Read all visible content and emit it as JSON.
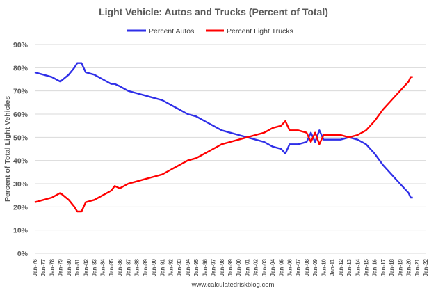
{
  "chart_data": {
    "type": "line",
    "title": "Light Vehicle: Autos and Trucks (Percent of Total)",
    "xlabel": "",
    "ylabel": "Percent of Total Light Vehicles",
    "source": "www.calculatedriskblog.com",
    "ylim": [
      0,
      90
    ],
    "yticks": [
      "0%",
      "10%",
      "20%",
      "30%",
      "40%",
      "50%",
      "60%",
      "70%",
      "80%",
      "90%"
    ],
    "xticks": [
      "Jan-76",
      "Jan-77",
      "Jan-78",
      "Jan-79",
      "Jan-80",
      "Jan-81",
      "Jan-82",
      "Jan-83",
      "Jan-84",
      "Jan-85",
      "Jan-86",
      "Jan-87",
      "Jan-88",
      "Jan-89",
      "Jan-90",
      "Jan-91",
      "Jan-92",
      "Jan-93",
      "Jan-94",
      "Jan-95",
      "Jan-96",
      "Jan-97",
      "Jan-98",
      "Jan-99",
      "Jan-00",
      "Jan-01",
      "Jan-02",
      "Jan-03",
      "Jan-04",
      "Jan-05",
      "Jan-06",
      "Jan-07",
      "Jan-08",
      "Jan-09",
      "Jan-10",
      "Jan-11",
      "Jan-12",
      "Jan-13",
      "Jan-14",
      "Jan-15",
      "Jan-16",
      "Jan-17",
      "Jan-18",
      "Jan-19",
      "Jan-20",
      "Jan-21",
      "Jan-22"
    ],
    "grid": true,
    "legend": "top-center",
    "series": [
      {
        "name": "Percent Autos",
        "color": "#2F2FE8",
        "x": [
          "1976-01",
          "1977-01",
          "1978-01",
          "1979-01",
          "1980-01",
          "1980-09",
          "1981-01",
          "1981-07",
          "1982-01",
          "1983-01",
          "1984-01",
          "1985-01",
          "1985-06",
          "1986-01",
          "1987-01",
          "1988-01",
          "1989-01",
          "1990-01",
          "1991-01",
          "1992-01",
          "1993-01",
          "1994-01",
          "1995-01",
          "1996-01",
          "1997-01",
          "1998-01",
          "1999-01",
          "2000-01",
          "2001-01",
          "2002-01",
          "2003-01",
          "2004-01",
          "2005-01",
          "2005-07",
          "2006-01",
          "2007-01",
          "2008-01",
          "2008-07",
          "2009-01",
          "2009-07",
          "2010-01",
          "2011-01",
          "2012-01",
          "2013-01",
          "2014-01",
          "2015-01",
          "2016-01",
          "2017-01",
          "2018-01",
          "2019-01",
          "2020-01",
          "2020-04",
          "2020-07"
        ],
        "values": [
          78,
          77,
          76,
          74,
          77,
          80,
          82,
          82,
          78,
          77,
          75,
          73,
          73,
          72,
          70,
          69,
          68,
          67,
          66,
          64,
          62,
          60,
          59,
          57,
          55,
          53,
          52,
          51,
          50,
          49,
          48,
          46,
          45,
          43,
          47,
          47,
          48,
          52,
          48,
          53,
          49,
          49,
          49,
          50,
          49,
          47,
          43,
          38,
          34,
          30,
          26,
          24,
          24
        ]
      },
      {
        "name": "Percent Light Trucks",
        "color": "#FF0000",
        "x": [
          "1976-01",
          "1977-01",
          "1978-01",
          "1979-01",
          "1980-01",
          "1980-09",
          "1981-01",
          "1981-07",
          "1982-01",
          "1983-01",
          "1984-01",
          "1985-01",
          "1985-06",
          "1986-01",
          "1987-01",
          "1988-01",
          "1989-01",
          "1990-01",
          "1991-01",
          "1992-01",
          "1993-01",
          "1994-01",
          "1995-01",
          "1996-01",
          "1997-01",
          "1998-01",
          "1999-01",
          "2000-01",
          "2001-01",
          "2002-01",
          "2003-01",
          "2004-01",
          "2005-01",
          "2005-07",
          "2006-01",
          "2007-01",
          "2008-01",
          "2008-07",
          "2009-01",
          "2009-07",
          "2010-01",
          "2011-01",
          "2012-01",
          "2013-01",
          "2014-01",
          "2015-01",
          "2016-01",
          "2017-01",
          "2018-01",
          "2019-01",
          "2020-01",
          "2020-04",
          "2020-07"
        ],
        "values": [
          22,
          23,
          24,
          26,
          23,
          20,
          18,
          18,
          22,
          23,
          25,
          27,
          29,
          28,
          30,
          31,
          32,
          33,
          34,
          36,
          38,
          40,
          41,
          43,
          45,
          47,
          48,
          49,
          50,
          51,
          52,
          54,
          55,
          57,
          53,
          53,
          52,
          48,
          52,
          47,
          51,
          51,
          51,
          50,
          51,
          53,
          57,
          62,
          66,
          70,
          74,
          76,
          76
        ]
      }
    ]
  }
}
